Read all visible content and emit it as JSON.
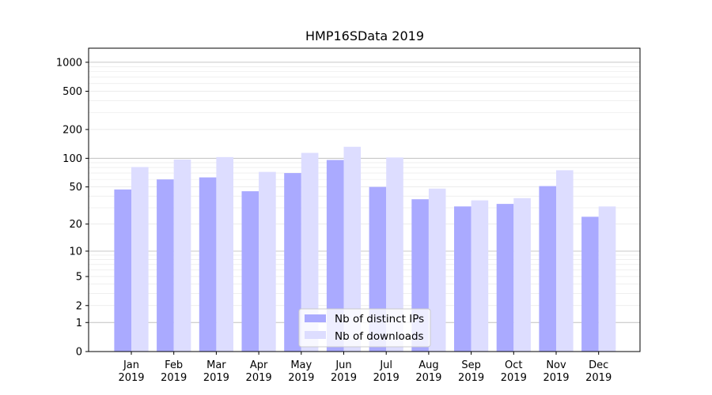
{
  "chart_data": {
    "type": "bar",
    "title": "HMP16SData 2019",
    "xlabel": "",
    "ylabel": "",
    "yscale": "symlog",
    "ylim": [
      0,
      1400
    ],
    "yticks": [
      0,
      1,
      2,
      5,
      10,
      20,
      50,
      100,
      200,
      500,
      1000
    ],
    "categories": [
      [
        "Jan",
        "2019"
      ],
      [
        "Feb",
        "2019"
      ],
      [
        "Mar",
        "2019"
      ],
      [
        "Apr",
        "2019"
      ],
      [
        "May",
        "2019"
      ],
      [
        "Jun",
        "2019"
      ],
      [
        "Jul",
        "2019"
      ],
      [
        "Aug",
        "2019"
      ],
      [
        "Sep",
        "2019"
      ],
      [
        "Oct",
        "2019"
      ],
      [
        "Nov",
        "2019"
      ],
      [
        "Dec",
        "2019"
      ]
    ],
    "series": [
      {
        "name": "Nb of distinct IPs",
        "color": "#aaaaff",
        "values": [
          47,
          60,
          63,
          45,
          70,
          96,
          50,
          37,
          31,
          33,
          51,
          24
        ]
      },
      {
        "name": "Nb of downloads",
        "color": "#ddddff",
        "values": [
          81,
          97,
          103,
          72,
          114,
          132,
          102,
          48,
          36,
          38,
          75,
          31
        ]
      }
    ],
    "grid": true,
    "legend_position": "bottom-center"
  }
}
